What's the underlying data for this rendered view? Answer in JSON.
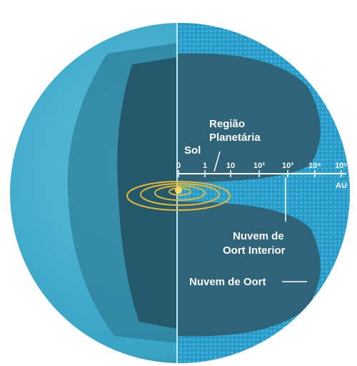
{
  "labels": {
    "planetary_region": [
      "Região",
      "Planetária"
    ],
    "sun": "Sol",
    "inner_oort": [
      "Nuvem de",
      "Oort Interior"
    ],
    "oort": "Nuvem de Oort"
  },
  "scale": {
    "ticks": [
      "0",
      "1",
      "10",
      "10²",
      "10³",
      "10⁴",
      "10⁵"
    ],
    "unit": "AU"
  }
}
